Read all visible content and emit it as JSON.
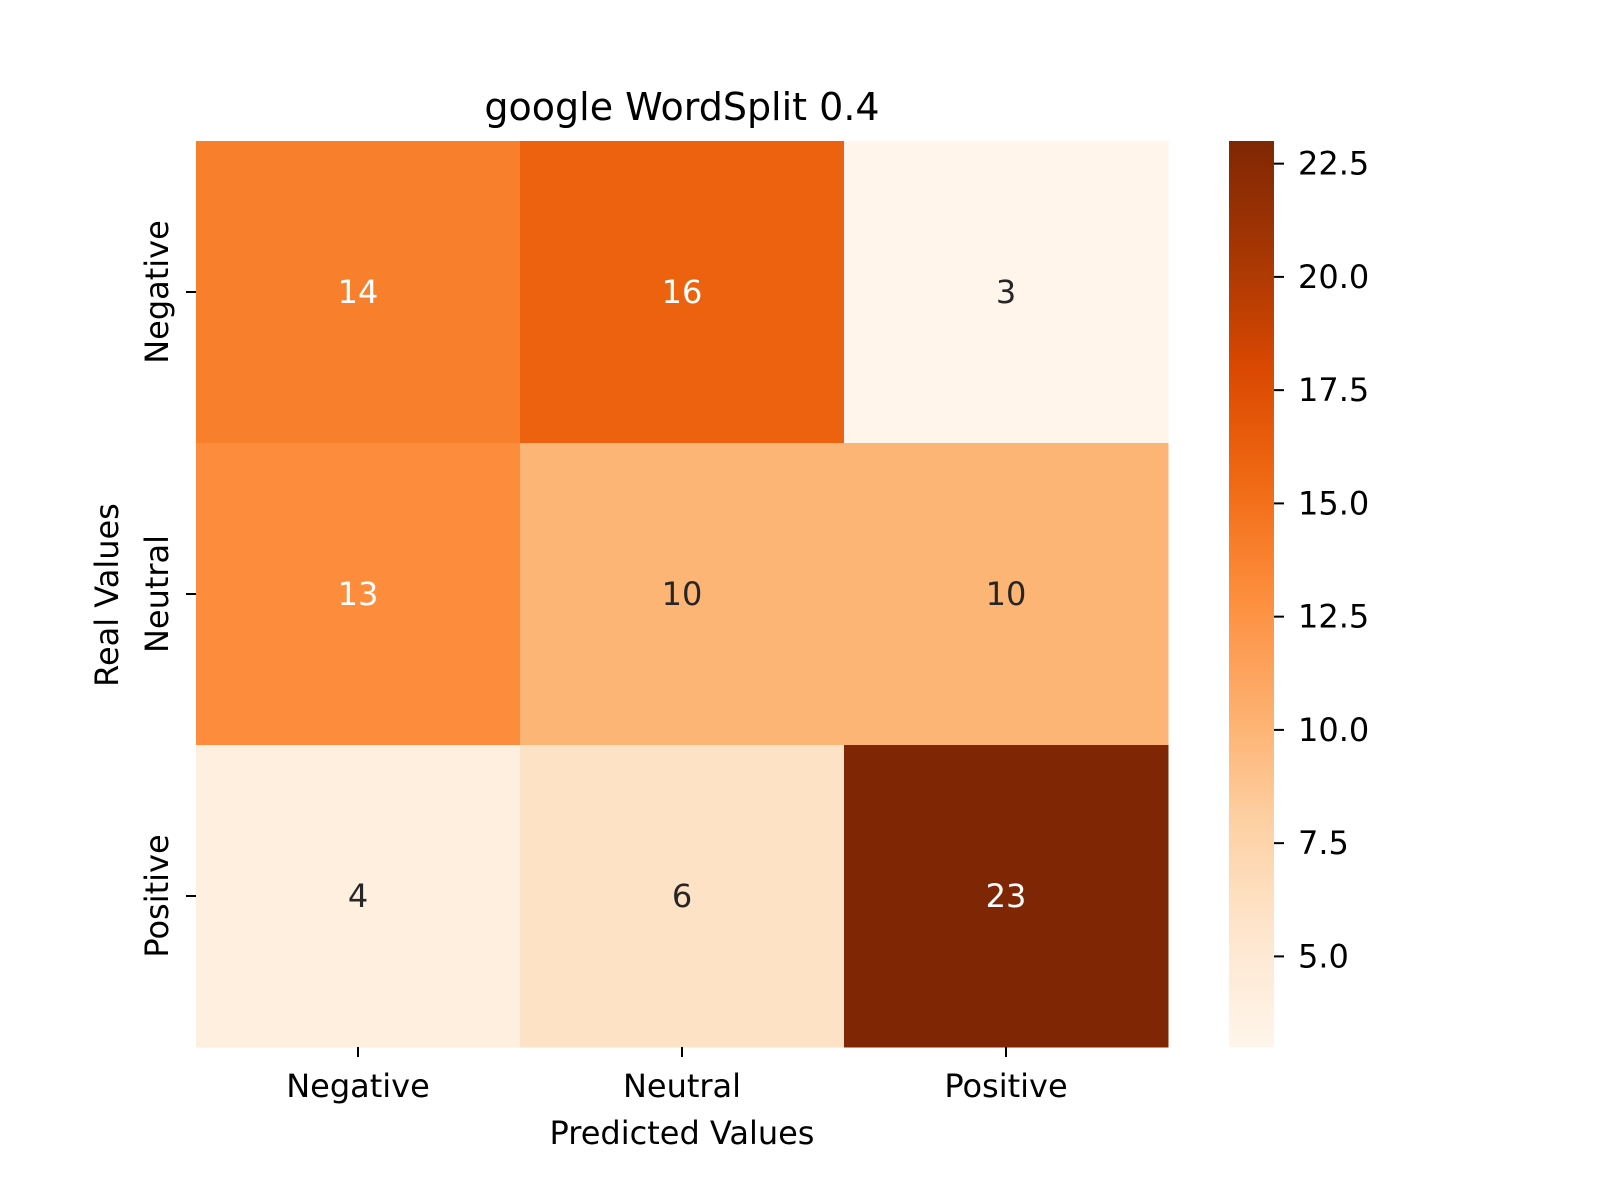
{
  "chart_data": {
    "type": "heatmap",
    "title": "google WordSplit 0.4",
    "xlabel": "Predicted Values",
    "ylabel": "Real Values",
    "x_categories": [
      "Negative",
      "Neutral",
      "Positive"
    ],
    "y_categories": [
      "Negative",
      "Neutral",
      "Positive"
    ],
    "values": [
      [
        14,
        16,
        3
      ],
      [
        13,
        10,
        10
      ],
      [
        4,
        6,
        23
      ]
    ],
    "colorbar": {
      "range": [
        3,
        23
      ],
      "ticks": [
        "5.0",
        "7.5",
        "10.0",
        "12.5",
        "15.0",
        "17.5",
        "20.0",
        "22.5"
      ],
      "colormap": "Oranges",
      "low_color": "#fff5eb",
      "high_color": "#7f2704"
    },
    "grid": false
  }
}
